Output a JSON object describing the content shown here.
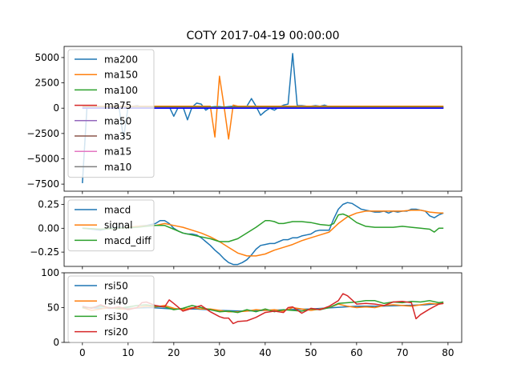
{
  "chart_data": [
    {
      "type": "line",
      "title": "COTY 2017-04-19 00:00:00",
      "xlim": [
        -4,
        83
      ],
      "ylim": [
        -8200,
        6100
      ],
      "yticks": [
        -7500,
        -5000,
        -2500,
        0,
        2500,
        5000
      ],
      "ytick_labels": [
        "−7500",
        "−5000",
        "−2500",
        "0",
        "2500",
        "5000"
      ],
      "legend": "upper-left",
      "series": [
        {
          "name": "ma200",
          "color": "#1f77b4",
          "x": [
            0,
            1,
            2,
            3,
            4,
            5,
            6,
            7,
            8,
            9,
            10,
            11,
            12,
            13,
            14,
            15,
            16,
            17,
            18,
            19,
            20,
            21,
            22,
            23,
            24,
            25,
            26,
            27,
            28,
            29,
            30,
            31,
            32,
            33,
            34,
            35,
            36,
            37,
            38,
            39,
            40,
            41,
            42,
            43,
            44,
            45,
            46,
            47,
            48,
            49,
            50,
            51,
            52,
            53,
            54,
            55,
            56,
            57,
            58,
            59,
            60,
            61,
            62,
            63,
            64,
            65,
            66,
            67,
            68,
            69,
            70,
            71,
            72,
            73,
            74,
            75,
            76,
            77,
            78,
            79
          ],
          "y": [
            -7400,
            100,
            150,
            150,
            150,
            150,
            150,
            150,
            150,
            -3000,
            150,
            200,
            250,
            150,
            200,
            180,
            160,
            150,
            150,
            150,
            -800,
            100,
            150,
            -1150,
            100,
            500,
            400,
            -200,
            100,
            150,
            150,
            100,
            150,
            200,
            150,
            150,
            200,
            950,
            200,
            -700,
            -300,
            0,
            -200,
            100,
            300,
            400,
            5400,
            250,
            250,
            200,
            200,
            250,
            200,
            300,
            150,
            150,
            150,
            150,
            150,
            150,
            150,
            150,
            150,
            150,
            150,
            150,
            150,
            150,
            150,
            150,
            150,
            150,
            150,
            150,
            150,
            150,
            150,
            150,
            150,
            150
          ]
        },
        {
          "name": "ma150",
          "color": "#ff7f0e",
          "x": [
            0,
            1,
            2,
            3,
            4,
            5,
            6,
            7,
            8,
            9,
            10,
            11,
            12,
            13,
            14,
            15,
            16,
            17,
            18,
            19,
            20,
            21,
            22,
            23,
            24,
            25,
            26,
            27,
            28,
            29,
            30,
            31,
            32,
            33,
            34,
            35,
            36,
            37,
            38,
            39,
            40,
            41,
            42,
            43,
            44,
            45,
            46,
            47,
            48,
            49,
            50,
            51,
            52,
            53,
            54,
            55,
            56,
            57,
            58,
            59,
            60,
            61,
            62,
            63,
            64,
            65,
            66,
            67,
            68,
            69,
            70,
            71,
            72,
            73,
            74,
            75,
            76,
            77,
            78,
            79
          ],
          "y": [
            200,
            200,
            200,
            200,
            200,
            200,
            200,
            200,
            200,
            200,
            200,
            200,
            200,
            200,
            200,
            200,
            200,
            200,
            200,
            200,
            200,
            200,
            200,
            200,
            200,
            200,
            200,
            200,
            200,
            -2850,
            3150,
            200,
            -3050,
            300,
            200,
            200,
            200,
            200,
            200,
            200,
            200,
            200,
            200,
            200,
            200,
            200,
            200,
            200,
            200,
            200,
            200,
            200,
            200,
            200,
            200,
            200,
            200,
            200,
            200,
            200,
            200,
            200,
            200,
            200,
            200,
            200,
            200,
            200,
            200,
            200,
            200,
            200,
            200,
            200,
            200,
            200,
            200,
            200,
            200,
            200
          ]
        },
        {
          "name": "ma100",
          "color": "#2ca02c",
          "x": [
            0,
            79
          ],
          "y": [
            100,
            100
          ]
        },
        {
          "name": "ma75",
          "color": "#d62728",
          "x": [
            0,
            79
          ],
          "y": [
            60,
            60
          ]
        },
        {
          "name": "ma50",
          "color": "#9467bd",
          "x": [
            0,
            79
          ],
          "y": [
            40,
            40
          ]
        },
        {
          "name": "ma35",
          "color": "#8c564b",
          "x": [
            0,
            79
          ],
          "y": [
            20,
            20
          ]
        },
        {
          "name": "ma15",
          "color": "#e377c2",
          "x": [
            0,
            79
          ],
          "y": [
            10,
            10
          ]
        },
        {
          "name": "ma10",
          "color": "#7f7f7f",
          "x": [
            0,
            79
          ],
          "y": [
            0,
            0
          ]
        },
        {
          "name": "",
          "color": "#0000ff",
          "x": [
            0,
            79
          ],
          "y": [
            -10,
            -10
          ]
        }
      ]
    },
    {
      "type": "line",
      "xlim": [
        -4,
        83
      ],
      "ylim": [
        -0.4,
        0.33
      ],
      "yticks": [
        -0.25,
        0.0,
        0.25
      ],
      "ytick_labels": [
        "−0.25",
        "0.00",
        "0.25"
      ],
      "legend": "upper-left",
      "series": [
        {
          "name": "macd",
          "color": "#1f77b4",
          "x": [
            0,
            2,
            4,
            6,
            8,
            10,
            12,
            14,
            16,
            17,
            18,
            19,
            20,
            21,
            22,
            23,
            24,
            25,
            26,
            27,
            28,
            29,
            30,
            31,
            32,
            33,
            34,
            35,
            36,
            37,
            38,
            39,
            40,
            41,
            42,
            43,
            44,
            45,
            46,
            47,
            48,
            49,
            50,
            51,
            52,
            53,
            54,
            55,
            56,
            57,
            58,
            59,
            60,
            61,
            62,
            63,
            64,
            65,
            66,
            67,
            68,
            69,
            70,
            71,
            72,
            73,
            74,
            75,
            76,
            77,
            78,
            79
          ],
          "y": [
            0.0,
            -0.01,
            -0.02,
            0.0,
            0.01,
            0.01,
            0.02,
            0.03,
            0.05,
            0.08,
            0.08,
            0.05,
            0.0,
            -0.03,
            -0.05,
            -0.06,
            -0.06,
            -0.07,
            -0.1,
            -0.14,
            -0.18,
            -0.23,
            -0.27,
            -0.32,
            -0.36,
            -0.38,
            -0.38,
            -0.36,
            -0.33,
            -0.28,
            -0.22,
            -0.18,
            -0.17,
            -0.16,
            -0.16,
            -0.14,
            -0.12,
            -0.12,
            -0.1,
            -0.1,
            -0.08,
            -0.07,
            -0.06,
            -0.03,
            -0.02,
            -0.02,
            -0.02,
            0.1,
            0.2,
            0.25,
            0.27,
            0.26,
            0.23,
            0.2,
            0.19,
            0.18,
            0.17,
            0.17,
            0.18,
            0.16,
            0.18,
            0.17,
            0.18,
            0.18,
            0.2,
            0.2,
            0.19,
            0.18,
            0.13,
            0.11,
            0.14,
            0.16
          ]
        },
        {
          "name": "signal",
          "color": "#ff7f0e",
          "x": [
            0,
            4,
            8,
            12,
            16,
            18,
            20,
            22,
            24,
            26,
            28,
            30,
            32,
            34,
            36,
            38,
            40,
            42,
            44,
            46,
            48,
            50,
            52,
            54,
            56,
            58,
            60,
            62,
            64,
            66,
            68,
            70,
            72,
            74,
            76,
            78,
            79
          ],
          "y": [
            0.0,
            -0.01,
            0.0,
            0.02,
            0.03,
            0.05,
            0.03,
            0.01,
            -0.02,
            -0.05,
            -0.09,
            -0.14,
            -0.2,
            -0.26,
            -0.29,
            -0.29,
            -0.27,
            -0.23,
            -0.2,
            -0.17,
            -0.13,
            -0.1,
            -0.07,
            -0.04,
            0.05,
            0.12,
            0.16,
            0.18,
            0.18,
            0.18,
            0.18,
            0.18,
            0.19,
            0.19,
            0.17,
            0.16,
            0.16
          ]
        },
        {
          "name": "macd_diff",
          "color": "#2ca02c",
          "x": [
            0,
            4,
            8,
            12,
            14,
            16,
            18,
            20,
            22,
            24,
            26,
            28,
            30,
            32,
            34,
            36,
            38,
            40,
            41,
            42,
            43,
            44,
            46,
            48,
            50,
            52,
            54,
            55,
            56,
            57,
            58,
            60,
            62,
            64,
            66,
            68,
            70,
            72,
            74,
            76,
            77,
            78,
            79
          ],
          "y": [
            0.0,
            -0.01,
            0.0,
            0.01,
            0.02,
            0.03,
            0.03,
            -0.01,
            -0.05,
            -0.07,
            -0.09,
            -0.11,
            -0.14,
            -0.14,
            -0.11,
            -0.05,
            0.01,
            0.08,
            0.08,
            0.07,
            0.05,
            0.05,
            0.07,
            0.07,
            0.06,
            0.04,
            0.03,
            0.05,
            0.14,
            0.15,
            0.13,
            0.06,
            0.02,
            0.01,
            0.01,
            0.01,
            0.02,
            0.01,
            0.0,
            -0.01,
            -0.04,
            0.0,
            0.0
          ]
        }
      ]
    },
    {
      "type": "line",
      "xlim": [
        -4,
        83
      ],
      "ylim": [
        0,
        100
      ],
      "yticks": [
        0,
        50,
        100
      ],
      "ytick_labels": [
        "0",
        "50",
        "100"
      ],
      "xticks": [
        0,
        10,
        20,
        30,
        40,
        50,
        60,
        70,
        80
      ],
      "xtick_labels": [
        "0",
        "10",
        "20",
        "30",
        "40",
        "50",
        "60",
        "70",
        "80"
      ],
      "legend": "upper-left",
      "series": [
        {
          "name": "rsi50",
          "color": "#1f77b4",
          "x": [
            0,
            5,
            10,
            15,
            20,
            25,
            30,
            35,
            40,
            45,
            50,
            55,
            60,
            65,
            70,
            75,
            79
          ],
          "y": [
            50,
            49,
            49,
            50,
            48,
            48,
            46,
            45,
            46,
            47,
            48,
            50,
            52,
            52,
            53,
            54,
            56
          ]
        },
        {
          "name": "rsi40",
          "color": "#ff7f0e",
          "x": [
            0,
            2,
            4,
            6,
            8,
            10,
            12,
            14,
            16,
            18,
            20,
            22,
            24,
            26,
            28,
            30,
            32,
            34,
            36,
            38,
            40,
            42,
            44,
            46,
            48,
            50,
            52,
            54,
            56,
            58,
            60,
            62,
            64,
            66,
            68,
            70,
            72,
            74,
            76,
            78,
            79
          ],
          "y": [
            50,
            46,
            48,
            50,
            48,
            48,
            50,
            52,
            51,
            53,
            49,
            47,
            50,
            48,
            48,
            46,
            44,
            44,
            45,
            47,
            46,
            47,
            45,
            50,
            48,
            46,
            48,
            50,
            55,
            52,
            50,
            51,
            50,
            53,
            54,
            53,
            52,
            54,
            56,
            55,
            56
          ]
        },
        {
          "name": "rsi30",
          "color": "#2ca02c",
          "x": [
            0,
            2,
            4,
            6,
            8,
            10,
            12,
            14,
            16,
            18,
            20,
            22,
            24,
            26,
            28,
            30,
            32,
            34,
            36,
            38,
            40,
            42,
            44,
            46,
            48,
            50,
            52,
            54,
            56,
            58,
            60,
            62,
            64,
            66,
            68,
            70,
            72,
            74,
            76,
            78,
            79
          ],
          "y": [
            50,
            50,
            52,
            50,
            49,
            51,
            53,
            54,
            52,
            51,
            47,
            49,
            53,
            50,
            47,
            44,
            45,
            43,
            47,
            44,
            48,
            44,
            47,
            46,
            45,
            48,
            47,
            50,
            56,
            57,
            58,
            60,
            60,
            56,
            58,
            57,
            59,
            58,
            60,
            57,
            58
          ]
        },
        {
          "name": "rsi20",
          "color": "#d62728",
          "x": [
            0,
            2,
            4,
            6,
            8,
            10,
            12,
            13,
            14,
            16,
            18,
            19,
            20,
            22,
            24,
            26,
            28,
            30,
            31,
            32,
            33,
            34,
            36,
            38,
            40,
            42,
            44,
            45,
            46,
            48,
            50,
            52,
            54,
            56,
            57,
            58,
            60,
            62,
            64,
            66,
            68,
            70,
            72,
            73,
            74,
            76,
            78,
            79
          ],
          "y": [
            52,
            49,
            54,
            49,
            51,
            47,
            50,
            57,
            58,
            53,
            51,
            61,
            56,
            45,
            49,
            53,
            44,
            37,
            35,
            35,
            27,
            30,
            31,
            36,
            43,
            45,
            43,
            50,
            51,
            42,
            49,
            47,
            52,
            60,
            70,
            67,
            55,
            56,
            55,
            53,
            58,
            59,
            57,
            34,
            40,
            48,
            55,
            56
          ]
        }
      ]
    }
  ]
}
